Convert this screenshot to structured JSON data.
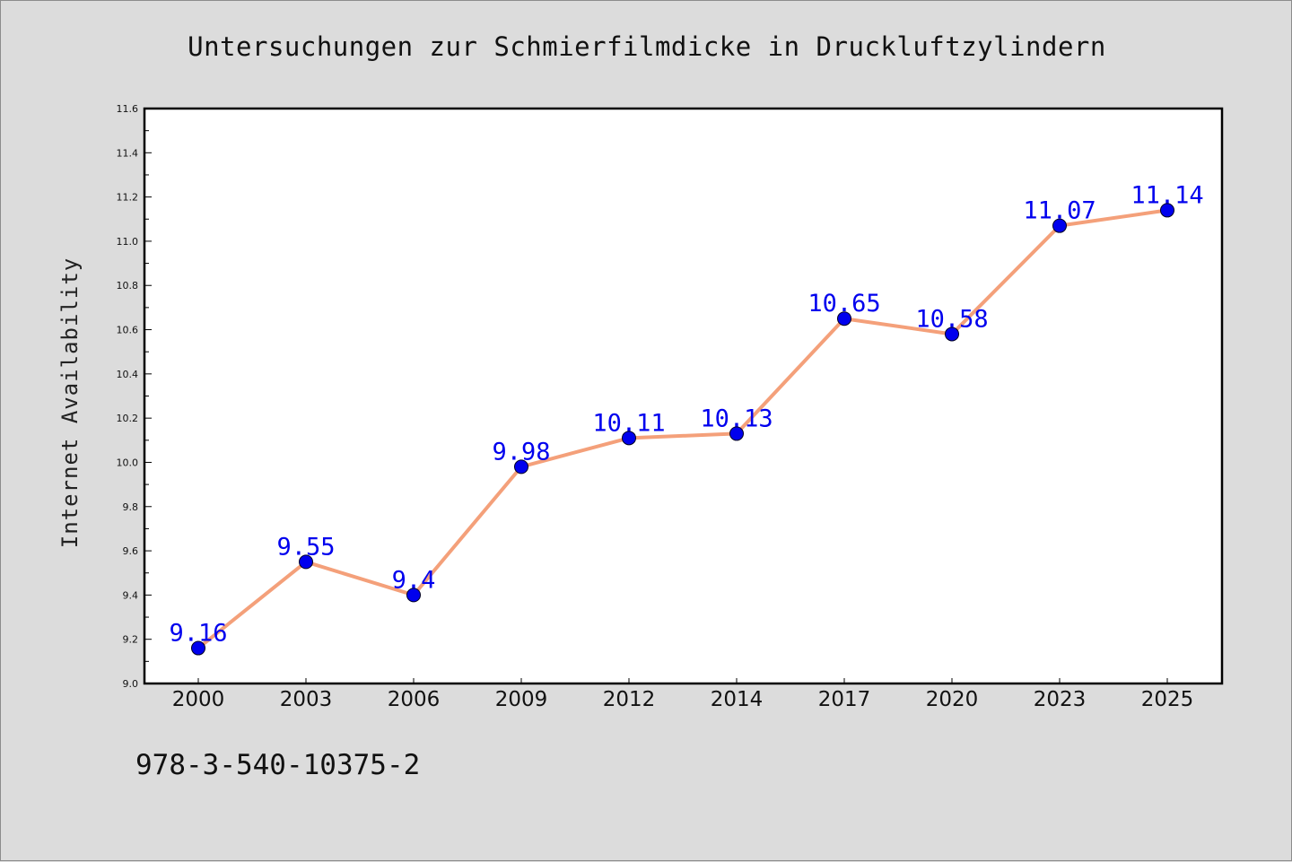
{
  "chart_data": {
    "type": "line",
    "title": "Untersuchungen zur Schmierfilmdicke in Druckluftzylindern",
    "xlabel": "",
    "ylabel": "Internet Availability",
    "categories": [
      "2000",
      "2003",
      "2006",
      "2009",
      "2012",
      "2014",
      "2017",
      "2020",
      "2023",
      "2025"
    ],
    "values": [
      9.16,
      9.55,
      9.4,
      9.98,
      10.11,
      10.13,
      10.65,
      10.58,
      11.07,
      11.14
    ],
    "data_labels": [
      "9.16",
      "9.55",
      "9.4",
      "9.98",
      "10.11",
      "10.13",
      "10.65",
      "10.58",
      "11.07",
      "11.14"
    ],
    "ylim": [
      9.0,
      11.6
    ],
    "yticks": [
      "9.0",
      "9.2",
      "9.4",
      "9.6",
      "9.8",
      "10.0",
      "10.2",
      "10.4",
      "10.6",
      "10.8",
      "11.0",
      "11.2",
      "11.4",
      "11.6"
    ],
    "grid": false,
    "line_color": "#f4a07a",
    "marker_color": "#0000ee",
    "label_color": "#0000ee"
  },
  "footer": {
    "code": "978-3-540-10375-2"
  }
}
